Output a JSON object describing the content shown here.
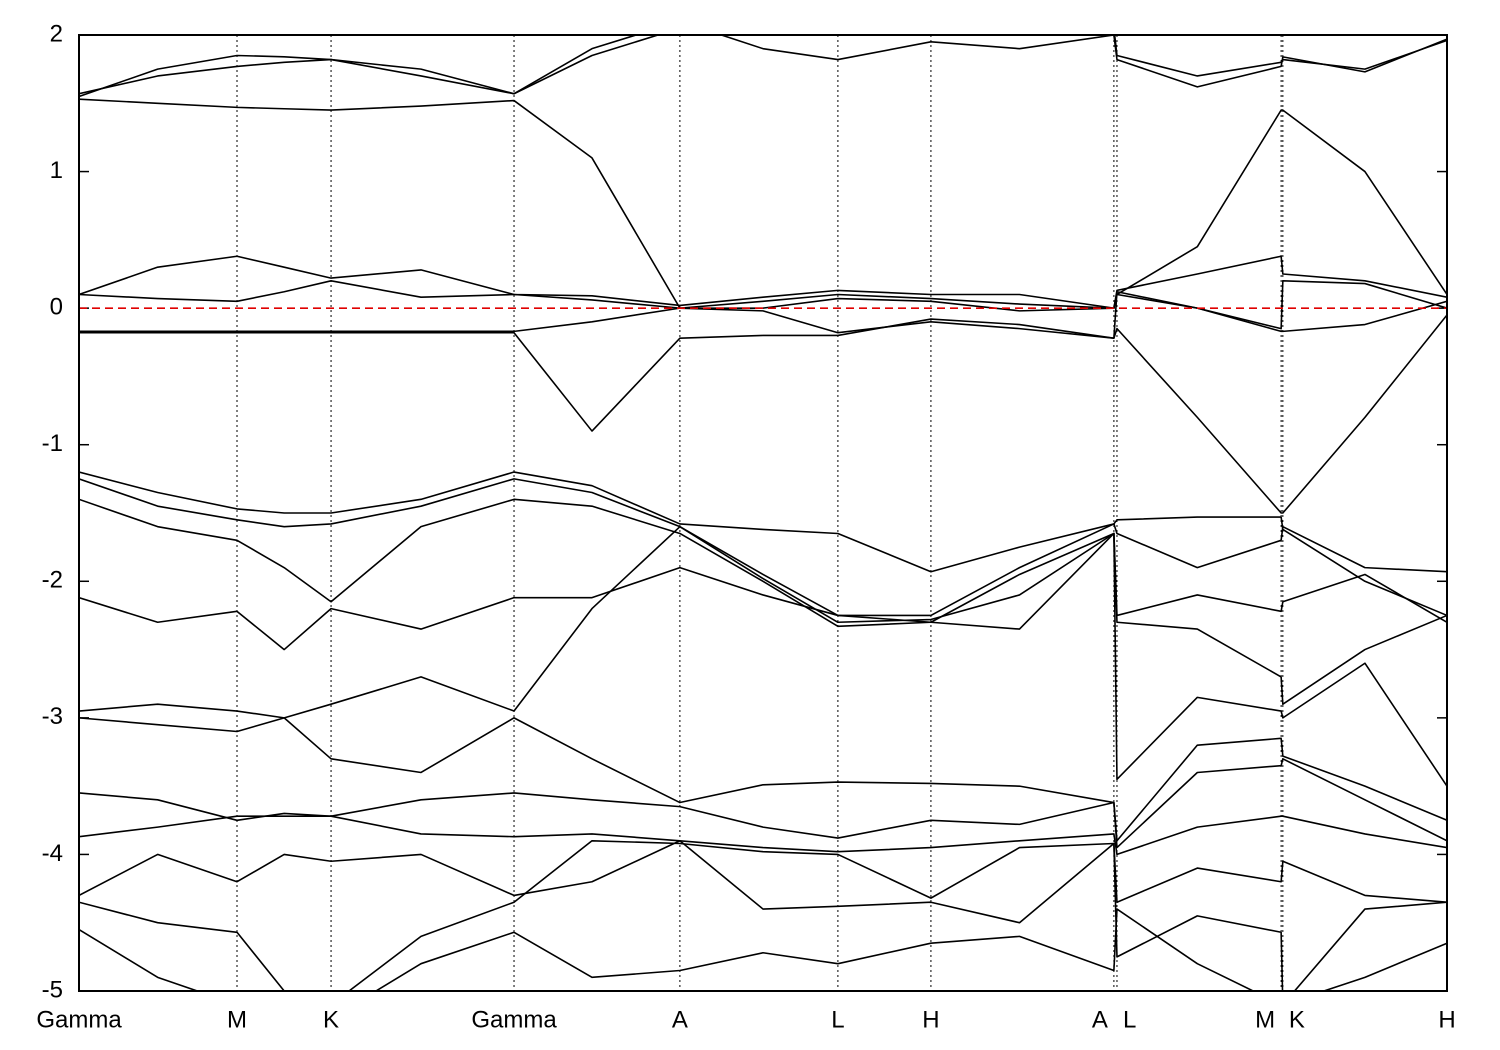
{
  "chart_data": {
    "type": "line",
    "x": [
      0,
      0.23,
      0.462,
      0.6,
      0.737,
      1.0,
      1.272,
      1.5,
      1.757,
      2.0,
      2.219,
      2.491,
      2.75,
      3.026,
      3.035,
      3.27,
      3.515,
      3.52,
      3.76,
      4.0
    ],
    "xlim": [
      0,
      4.0
    ],
    "xticks": [
      {
        "value": 0,
        "label": "Gamma"
      },
      {
        "value": 0.462,
        "label": "M"
      },
      {
        "value": 0.737,
        "label": "K"
      },
      {
        "value": 1.272,
        "label": "Gamma"
      },
      {
        "value": 1.757,
        "label": "A"
      },
      {
        "value": 2.219,
        "label": "L"
      },
      {
        "value": 2.491,
        "label": "H"
      },
      {
        "value": 3.026,
        "label": "A"
      },
      {
        "value": 3.035,
        "label": "L"
      },
      {
        "value": 3.515,
        "label": "M"
      },
      {
        "value": 3.52,
        "label": "K"
      },
      {
        "value": 4.0,
        "label": "H"
      }
    ],
    "ylim": [
      -5,
      2
    ],
    "yticks": [
      -5,
      -4,
      -3,
      -2,
      -1,
      0,
      1,
      2
    ],
    "grid_x": true,
    "reference_line": {
      "y": 0,
      "color": "#e00000"
    },
    "series": [
      {
        "color": "#000000",
        "values": [
          1.53,
          1.5,
          1.47,
          1.46,
          1.45,
          1.48,
          1.52,
          1.1,
          0.0,
          0.05,
          0.1,
          0.07,
          0.03,
          0.0,
          0.1,
          0.45,
          1.45,
          1.45,
          1.0,
          0.1
        ]
      },
      {
        "color": "#000000",
        "values": [
          1.57,
          1.7,
          1.77,
          1.8,
          1.82,
          1.7,
          1.57,
          1.85,
          2.05,
          2.05,
          2.05,
          2.05,
          2.05,
          2.05,
          1.85,
          1.7,
          1.8,
          1.82,
          1.75,
          1.96
        ]
      },
      {
        "color": "#000000",
        "values": [
          1.55,
          1.75,
          1.85,
          1.84,
          1.82,
          1.75,
          1.57,
          1.9,
          2.1,
          1.9,
          1.82,
          1.95,
          1.9,
          2.0,
          1.82,
          1.62,
          1.77,
          1.84,
          1.73,
          1.97
        ]
      },
      {
        "color": "#000000",
        "values": [
          0.1,
          0.3,
          0.38,
          0.3,
          0.22,
          0.28,
          0.1,
          0.09,
          0.02,
          0.08,
          0.13,
          0.1,
          0.1,
          0.0,
          0.13,
          0.25,
          0.38,
          0.25,
          0.2,
          0.08
        ]
      },
      {
        "color": "#000000",
        "values": [
          0.1,
          0.07,
          0.05,
          0.12,
          0.2,
          0.08,
          0.1,
          0.06,
          0.0,
          0.0,
          0.07,
          0.05,
          -0.02,
          0.0,
          0.1,
          0.0,
          -0.17,
          -0.17,
          -0.12,
          0.05
        ]
      },
      {
        "color": "#000000",
        "values": [
          -0.17,
          -0.17,
          -0.17,
          -0.17,
          -0.17,
          -0.17,
          -0.17,
          -0.1,
          0.0,
          -0.02,
          -0.18,
          -0.1,
          -0.15,
          -0.22,
          -0.15,
          -0.8,
          -1.5,
          -1.5,
          -0.8,
          -0.05
        ]
      },
      {
        "color": "#000000",
        "values": [
          -0.18,
          -0.18,
          -0.18,
          -0.18,
          -0.18,
          -0.18,
          -0.18,
          -0.9,
          -0.22,
          -0.2,
          -0.2,
          -0.08,
          -0.12,
          -0.22,
          0.12,
          0.0,
          -0.15,
          0.2,
          0.18,
          0.0
        ]
      },
      {
        "color": "#000000",
        "values": [
          -1.2,
          -1.35,
          -1.47,
          -1.5,
          -1.5,
          -1.4,
          -1.2,
          -1.3,
          -1.58,
          -1.62,
          -1.65,
          -1.93,
          -1.75,
          -1.58,
          -1.65,
          -1.9,
          -1.7,
          -1.6,
          -1.9,
          -1.93
        ]
      },
      {
        "color": "#000000",
        "values": [
          -1.25,
          -1.45,
          -1.55,
          -1.6,
          -1.58,
          -1.45,
          -1.25,
          -1.35,
          -1.6,
          -1.95,
          -2.25,
          -2.25,
          -1.9,
          -1.58,
          -1.55,
          -1.53,
          -1.53,
          -1.62,
          -2.0,
          -2.25
        ]
      },
      {
        "color": "#000000",
        "values": [
          -1.4,
          -1.6,
          -1.7,
          -1.9,
          -2.15,
          -1.6,
          -1.4,
          -1.45,
          -1.65,
          -2.0,
          -2.33,
          -2.3,
          -1.95,
          -1.65,
          -2.25,
          -2.1,
          -2.22,
          -2.15,
          -1.95,
          -2.3
        ]
      },
      {
        "color": "#000000",
        "values": [
          -2.12,
          -2.3,
          -2.22,
          -2.5,
          -2.2,
          -2.35,
          -2.12,
          -2.12,
          -1.9,
          -2.1,
          -2.25,
          -2.3,
          -2.35,
          -1.65,
          -2.3,
          -2.35,
          -2.7,
          -2.9,
          -2.5,
          -2.25
        ]
      },
      {
        "color": "#000000",
        "values": [
          -2.95,
          -2.9,
          -2.95,
          -3.0,
          -2.9,
          -2.7,
          -2.95,
          -2.2,
          -1.6,
          -1.98,
          -2.3,
          -2.28,
          -2.1,
          -1.65,
          -3.45,
          -2.85,
          -2.95,
          -3.0,
          -2.6,
          -3.5
        ]
      },
      {
        "color": "#000000",
        "values": [
          -3.0,
          -3.05,
          -3.1,
          -3.0,
          -3.3,
          -3.4,
          -3.0,
          -3.3,
          -3.62,
          -3.49,
          -3.47,
          -3.48,
          -3.5,
          -3.62,
          -3.9,
          -3.2,
          -3.15,
          -3.28,
          -3.5,
          -3.75
        ]
      },
      {
        "color": "#000000",
        "values": [
          -3.55,
          -3.6,
          -3.75,
          -3.7,
          -3.72,
          -3.6,
          -3.55,
          -3.6,
          -3.65,
          -3.8,
          -3.88,
          -3.75,
          -3.78,
          -3.62,
          -3.95,
          -3.4,
          -3.35,
          -3.3,
          -3.6,
          -3.9
        ]
      },
      {
        "color": "#000000",
        "values": [
          -3.87,
          -3.8,
          -3.72,
          -3.72,
          -3.72,
          -3.85,
          -3.87,
          -3.85,
          -3.9,
          -3.95,
          -3.98,
          -3.95,
          -3.9,
          -3.85,
          -4.0,
          -3.8,
          -3.72,
          -3.72,
          -3.85,
          -3.95
        ]
      },
      {
        "color": "#000000",
        "values": [
          -4.3,
          -4.0,
          -4.2,
          -4.0,
          -4.05,
          -4.0,
          -4.3,
          -4.2,
          -3.9,
          -4.4,
          -4.38,
          -4.35,
          -4.5,
          -3.92,
          -4.35,
          -4.1,
          -4.2,
          -4.05,
          -4.3,
          -4.35
        ]
      },
      {
        "color": "#000000",
        "values": [
          -4.35,
          -4.5,
          -4.57,
          -5.0,
          -5.1,
          -4.6,
          -4.35,
          -3.9,
          -3.92,
          -3.98,
          -4.0,
          -4.32,
          -3.95,
          -3.92,
          -4.75,
          -4.45,
          -4.57,
          -5.1,
          -4.9,
          -4.65
        ]
      },
      {
        "color": "#000000",
        "values": [
          -4.55,
          -4.9,
          -5.1,
          -5.2,
          -5.2,
          -4.8,
          -4.57,
          -4.9,
          -4.85,
          -4.72,
          -4.8,
          -4.65,
          -4.6,
          -4.85,
          -4.4,
          -4.8,
          -5.1,
          -5.1,
          -4.4,
          -4.35
        ]
      }
    ]
  }
}
